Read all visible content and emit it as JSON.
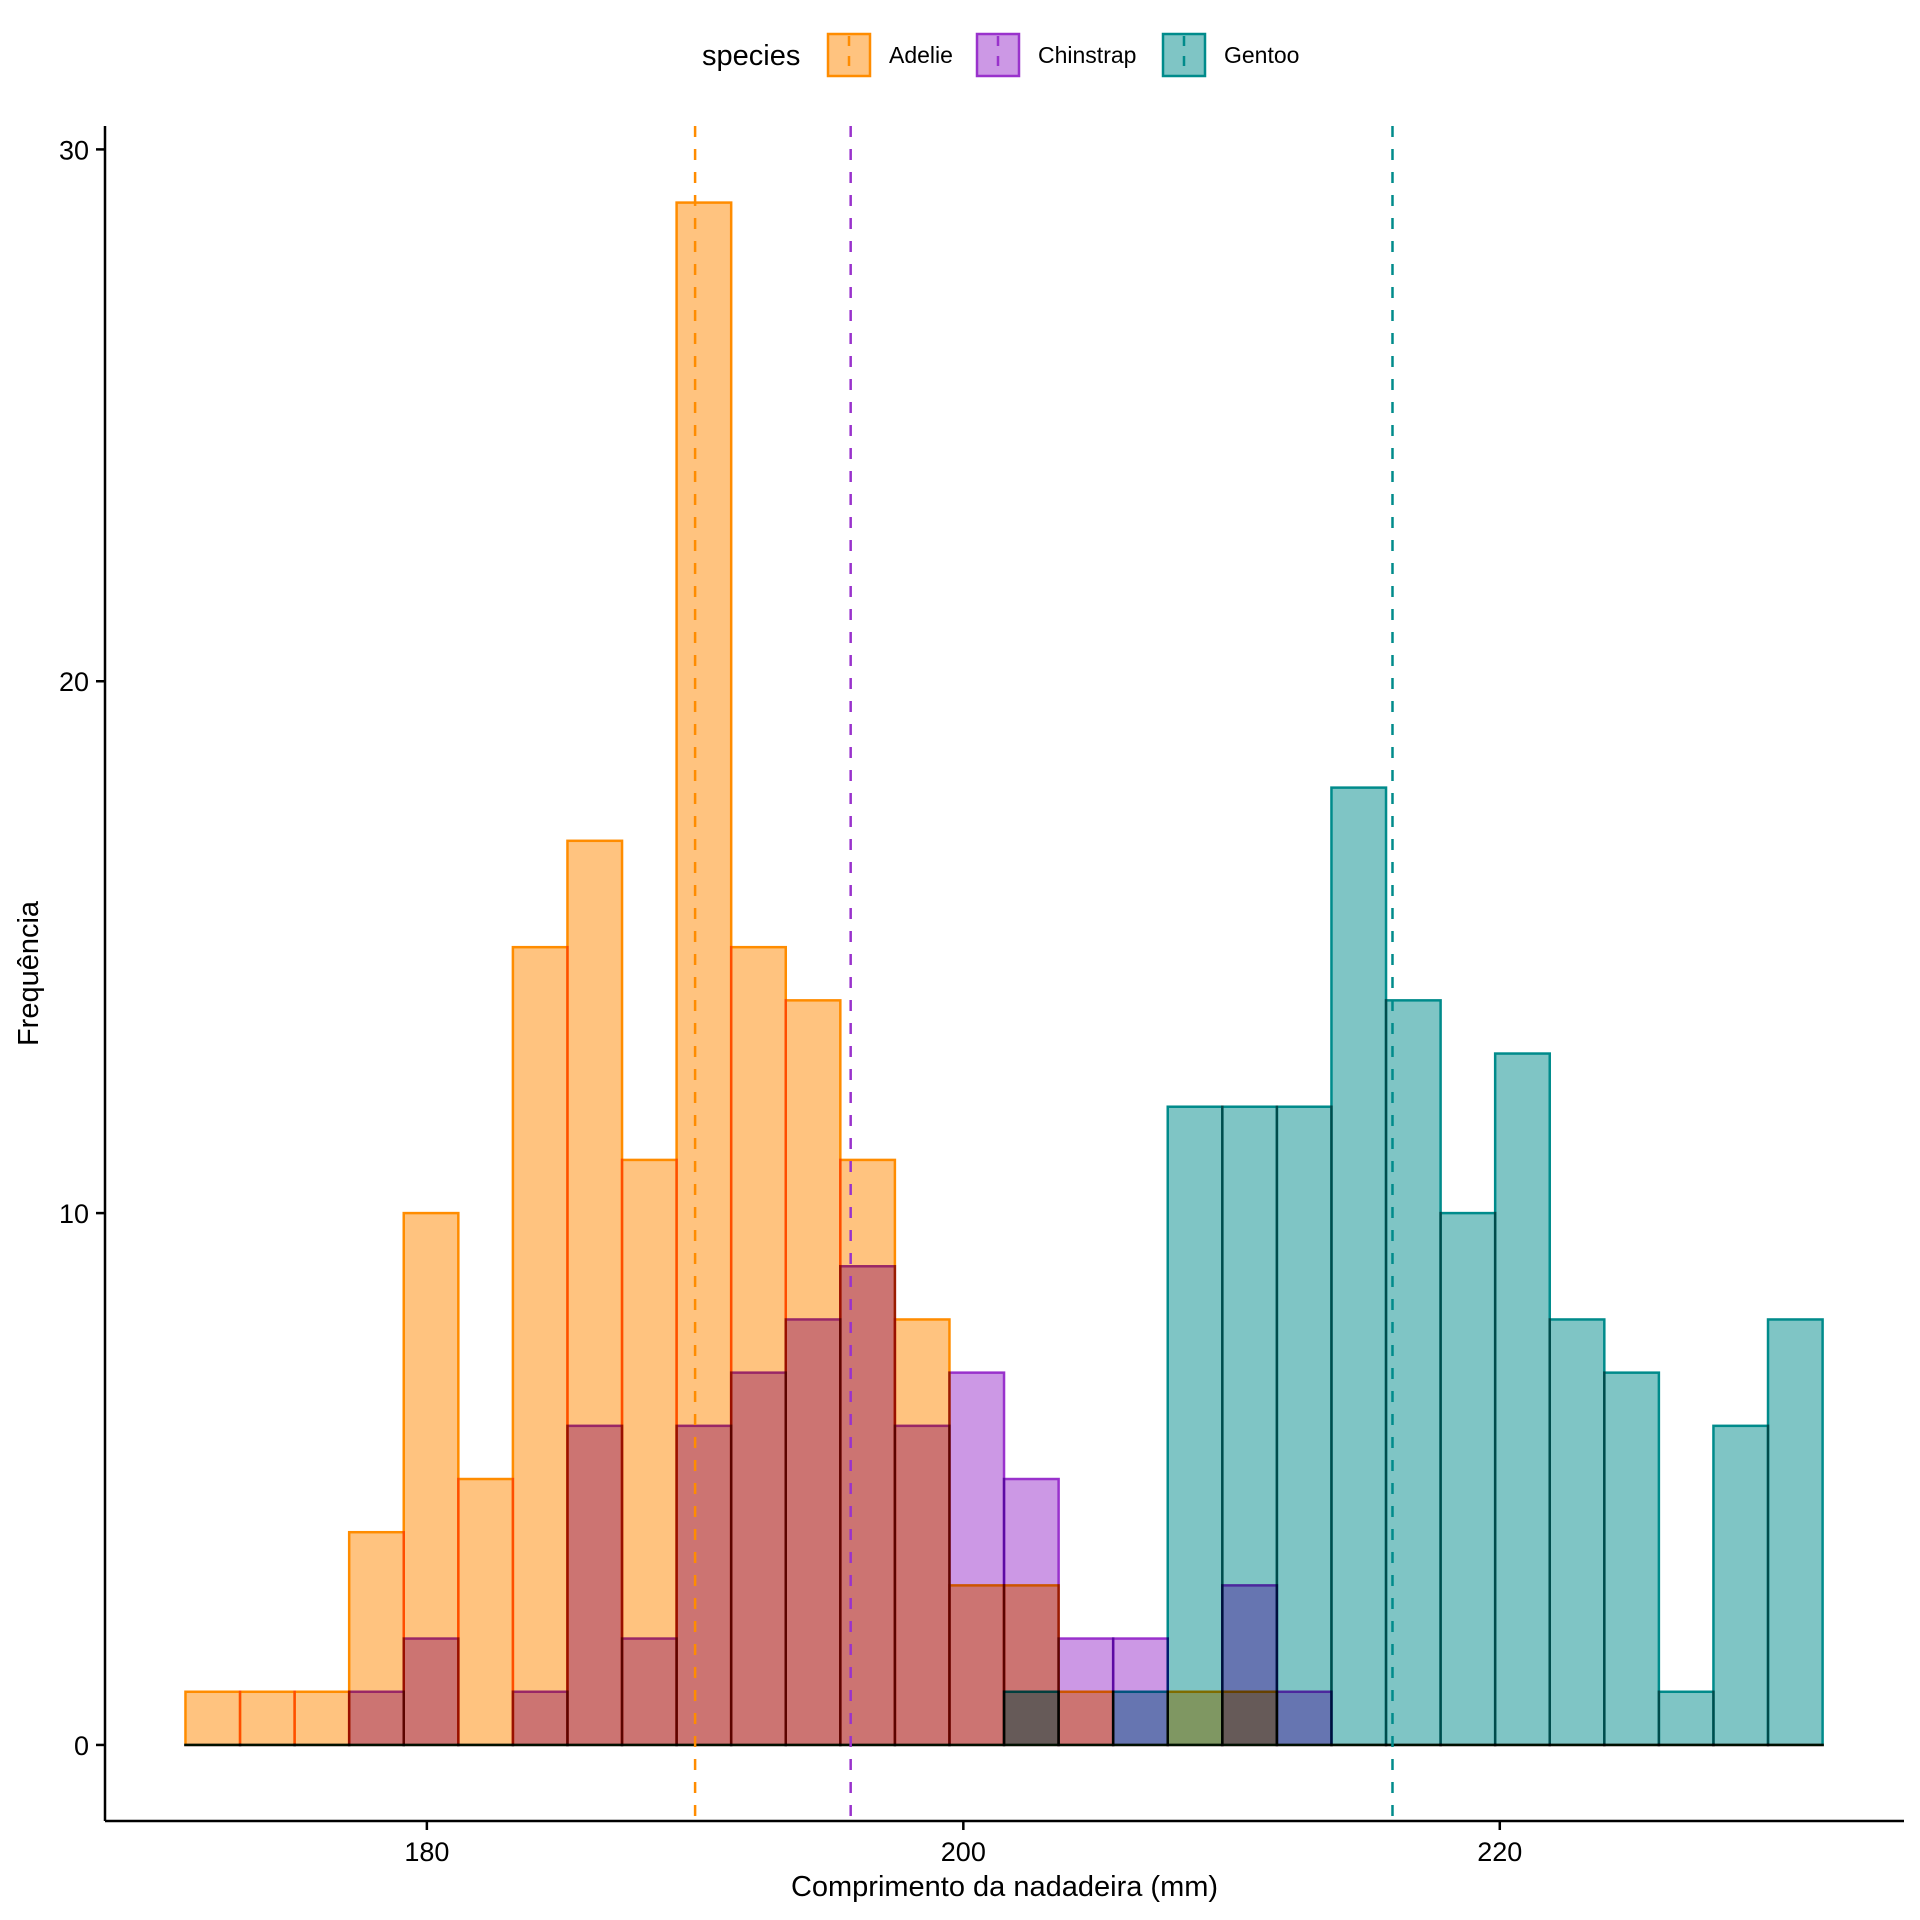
{
  "chart_data": {
    "type": "histogram",
    "title": "",
    "xlabel": "Comprimento da nadadeira (mm)",
    "ylabel": "Frequência",
    "xlim": [
      168.0,
      235.07
    ],
    "ylim": [
      -1.43,
      30.44
    ],
    "x_ticks": [
      180,
      200,
      220
    ],
    "x_tick_labels": [
      "180",
      "200",
      "220"
    ],
    "y_ticks": [
      0,
      10,
      20,
      30
    ],
    "y_tick_labels": [
      "0",
      "10",
      "20",
      "30"
    ],
    "grid": false,
    "legend": {
      "title": "species",
      "position": "top",
      "entries": [
        "Adelie",
        "Chinstrap",
        "Gentoo"
      ]
    },
    "bins": {
      "start": 171.0,
      "width": 2.0345,
      "count": 30
    },
    "series": [
      {
        "name": "Adelie",
        "color": "#FF8C00",
        "fill": "#FFC37F",
        "mean": 190.0,
        "counts": [
          1,
          1,
          1,
          4,
          10,
          5,
          15,
          17,
          11,
          29,
          15,
          14,
          11,
          8,
          3,
          3,
          1,
          0,
          1,
          1,
          0,
          0,
          0,
          0,
          0,
          0,
          0,
          0,
          0,
          0
        ]
      },
      {
        "name": "Chinstrap",
        "color": "#9932CC",
        "fill": "#CC98E5",
        "mean": 195.8,
        "counts": [
          0,
          0,
          0,
          1,
          2,
          0,
          1,
          6,
          2,
          6,
          7,
          8,
          9,
          6,
          7,
          5,
          2,
          2,
          0,
          3,
          1,
          0,
          0,
          0,
          0,
          0,
          0,
          0,
          0,
          0
        ]
      },
      {
        "name": "Gentoo",
        "color": "#008B8B",
        "fill": "#7FC5C5",
        "mean": 216.0,
        "counts": [
          0,
          0,
          0,
          0,
          0,
          0,
          0,
          0,
          0,
          0,
          0,
          0,
          0,
          0,
          0,
          1,
          0,
          1,
          12,
          12,
          12,
          18,
          14,
          10,
          13,
          8,
          7,
          1,
          6,
          8
        ]
      }
    ]
  }
}
